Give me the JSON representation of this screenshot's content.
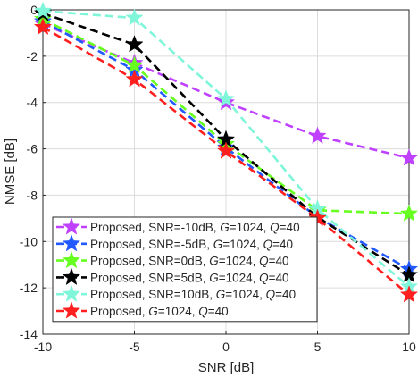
{
  "chart_data": {
    "type": "line",
    "xlabel": "SNR [dB]",
    "ylabel": "NMSE [dB]",
    "xlim": [
      -10,
      10
    ],
    "ylim": [
      -14,
      0
    ],
    "xticks": [
      -10,
      -5,
      0,
      5,
      10
    ],
    "yticks": [
      0,
      -2,
      -4,
      -6,
      -8,
      -10,
      -12,
      -14
    ],
    "grid": true,
    "legend_position": "bottom-left",
    "x": [
      -10,
      -5,
      0,
      5,
      10
    ],
    "series": [
      {
        "name": "Proposed, SNR=-10dB,",
        "g_label": "G=1024,",
        "q_label": "Q=40",
        "color": "#bf40ff",
        "values": [
          -0.6,
          -2.3,
          -4.0,
          -5.45,
          -6.4
        ]
      },
      {
        "name": "Proposed, SNR=-5dB,",
        "g_label": "G=1024,",
        "q_label": "Q=40",
        "color": "#2159ff",
        "values": [
          -0.5,
          -2.6,
          -5.95,
          -8.95,
          -11.2
        ]
      },
      {
        "name": "Proposed, SNR=0dB,",
        "g_label": "G=1024,",
        "q_label": "Q=40",
        "color": "#66ff1f",
        "values": [
          -0.4,
          -2.4,
          -5.8,
          -8.65,
          -8.8
        ]
      },
      {
        "name": "Proposed, SNR=5dB,",
        "g_label": "G=1024,",
        "q_label": "Q=40",
        "color": "#000000",
        "values": [
          -0.15,
          -1.5,
          -5.6,
          -8.95,
          -11.45
        ]
      },
      {
        "name": "Proposed, SNR=10dB,",
        "g_label": "G=1024,",
        "q_label": "Q=40",
        "color": "#7ff5d9",
        "values": [
          -0.05,
          -0.35,
          -3.85,
          -8.6,
          -11.95
        ]
      },
      {
        "name": "Proposed,",
        "g_label": "G=1024,",
        "q_label": "Q=40",
        "color": "#ff1f1f",
        "values": [
          -0.75,
          -3.0,
          -6.1,
          -9.0,
          -12.3
        ]
      }
    ]
  }
}
